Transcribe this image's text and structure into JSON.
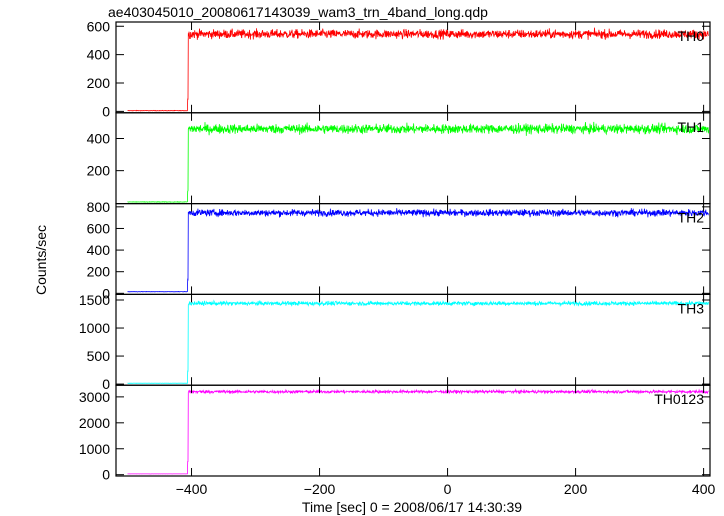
{
  "chart_data": {
    "type": "line",
    "title": "ae403045010_20080617143039_wam3_trn_4band_long.qdp",
    "xlabel": "Time [sec] 0 = 2008/06/17 14:30:39",
    "ylabel": "Counts/sec",
    "xlim": [
      -518,
      410
    ],
    "xticks": [
      -400,
      -200,
      0,
      200,
      400
    ],
    "xtick_labels": [
      "−400",
      "−200",
      "0",
      "200",
      "400"
    ],
    "step_time": -405,
    "panels": [
      {
        "name": "TH0",
        "color": "#ff0000",
        "ylim": [
          -10,
          630
        ],
        "yticks": [
          0,
          200,
          400,
          600
        ],
        "pre_level": 5,
        "mean": 545,
        "noise": 30
      },
      {
        "name": "TH1",
        "color": "#00ff00",
        "ylim": [
          -5,
          560
        ],
        "yticks": [
          200,
          400
        ],
        "pre_level": 5,
        "mean": 460,
        "noise": 28
      },
      {
        "name": "TH2",
        "color": "#0000ff",
        "ylim": [
          -10,
          830
        ],
        "yticks": [
          0,
          200,
          400,
          600,
          800
        ],
        "pre_level": 15,
        "mean": 745,
        "noise": 30
      },
      {
        "name": "TH3",
        "color": "#00ffff",
        "ylim": [
          -20,
          1600
        ],
        "yticks": [
          0,
          500,
          1000,
          1500
        ],
        "pre_level": 15,
        "mean": 1440,
        "noise": 35
      },
      {
        "name": "TH0123",
        "color": "#ff00ff",
        "ylim": [
          -50,
          3450
        ],
        "yticks": [
          0,
          1000,
          2000,
          3000
        ],
        "pre_level": 30,
        "mean": 3200,
        "noise": 55
      }
    ]
  }
}
